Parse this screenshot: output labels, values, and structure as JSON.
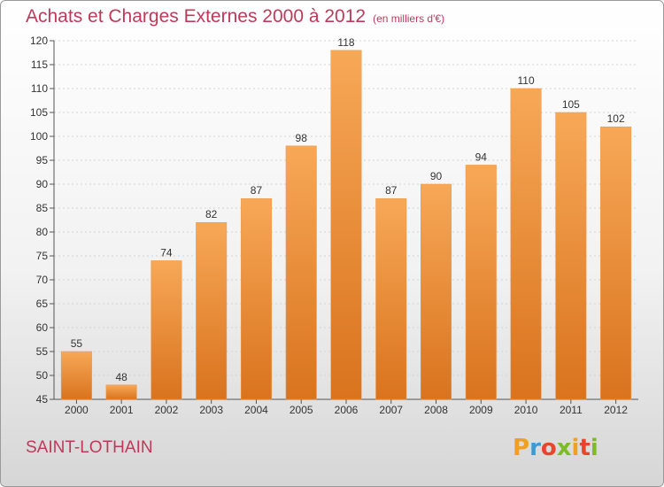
{
  "title": "Achats et Charges Externes 2000 à 2012",
  "subtitle": "(en milliers d'€)",
  "place": "SAINT-LOTHAIN",
  "logo": {
    "letters": [
      "P",
      "r",
      "o",
      "x",
      "i",
      "t",
      "i"
    ],
    "colors": [
      "#f0a020",
      "#3a9bd5",
      "#e8452c",
      "#7cbb2a",
      "#f0a020",
      "#e8452c",
      "#7cbb2a"
    ]
  },
  "chart_data": {
    "type": "bar",
    "categories": [
      "2000",
      "2001",
      "2002",
      "2003",
      "2004",
      "2005",
      "2006",
      "2007",
      "2008",
      "2009",
      "2010",
      "2011",
      "2012"
    ],
    "values": [
      55,
      48,
      74,
      82,
      87,
      98,
      118,
      87,
      90,
      94,
      110,
      105,
      102
    ],
    "ylim": [
      45,
      120
    ],
    "yticks": [
      45,
      50,
      55,
      60,
      65,
      70,
      75,
      80,
      85,
      90,
      95,
      100,
      105,
      110,
      115,
      120
    ],
    "title": "Achats et Charges Externes 2000 à 2012",
    "xlabel": "",
    "ylabel": "",
    "grid": true,
    "bar_color_top": "#f7a857",
    "bar_color_bottom": "#d9731e"
  }
}
